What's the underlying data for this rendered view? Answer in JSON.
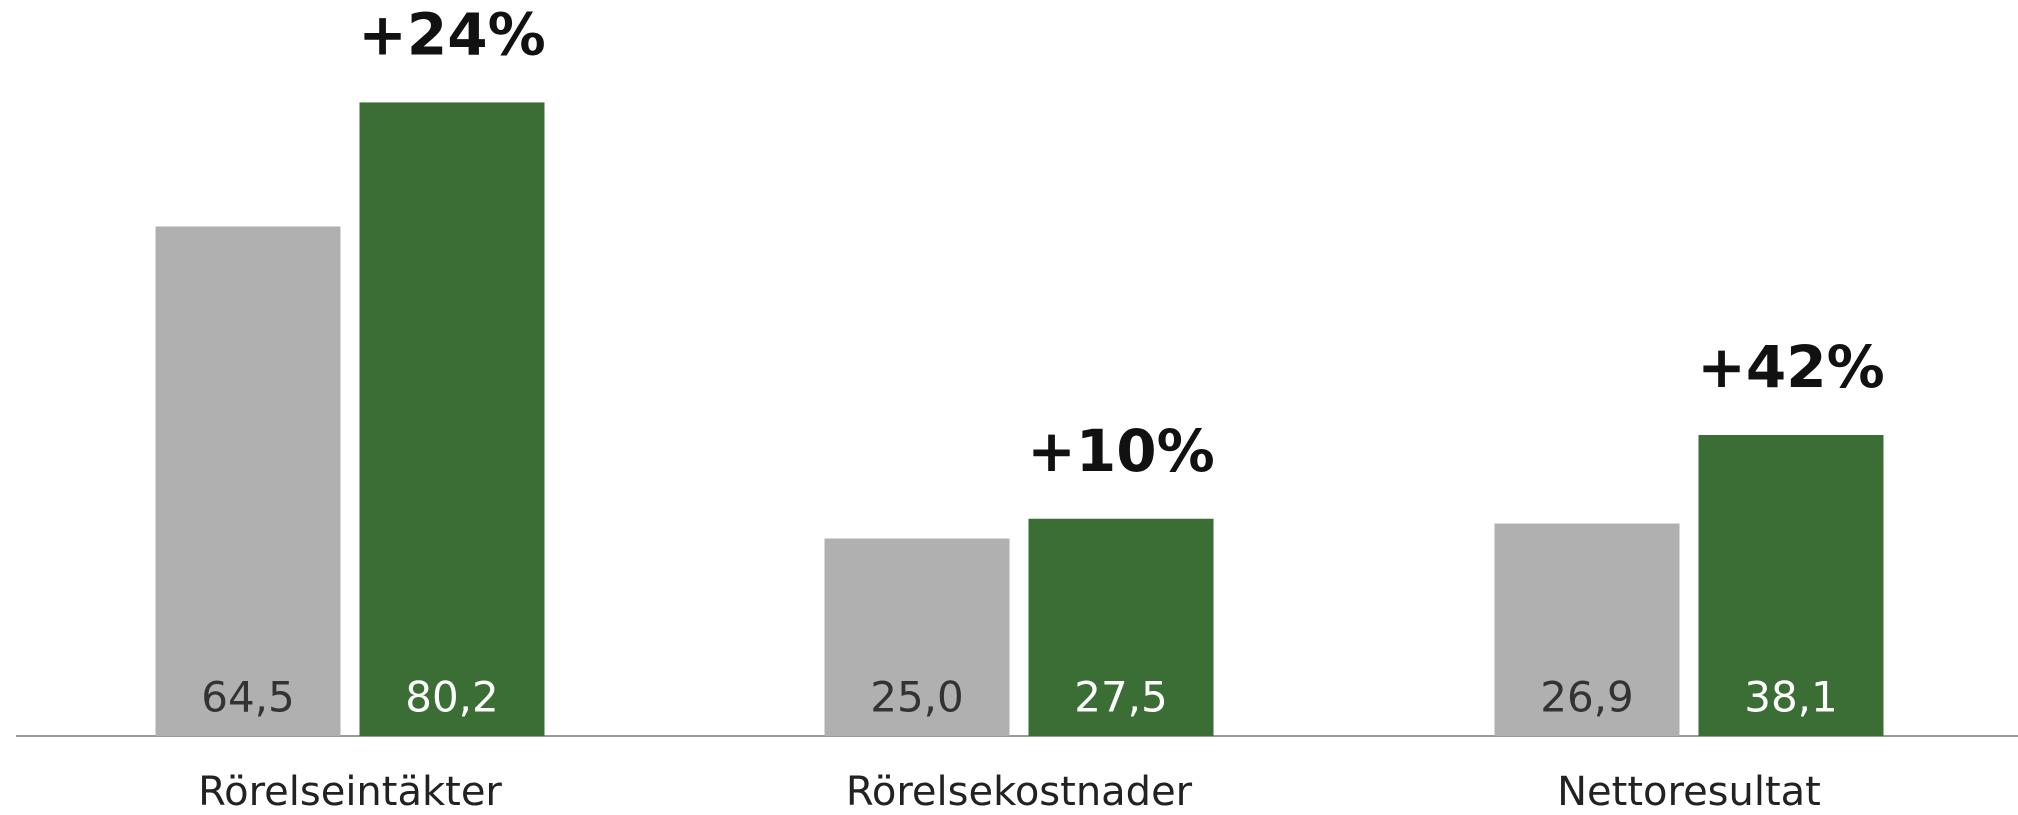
{
  "chart_data": {
    "type": "bar",
    "categories": [
      "Rörelseintäkter",
      "Rörelsekostnader",
      "Nettoresultat"
    ],
    "series": [
      {
        "color": "#b0b0b0",
        "label_color": "#333333",
        "values": [
          64.5,
          25.0,
          26.9
        ],
        "value_labels": [
          "64,5",
          "25,0",
          "26,9"
        ]
      },
      {
        "color": "#3b6e35",
        "label_color": "#ffffff",
        "values": [
          80.2,
          27.5,
          38.1
        ],
        "value_labels": [
          "80,2",
          "27,5",
          "38,1"
        ]
      }
    ],
    "annotations": [
      "+24%",
      "+10%",
      "+42%"
    ]
  }
}
